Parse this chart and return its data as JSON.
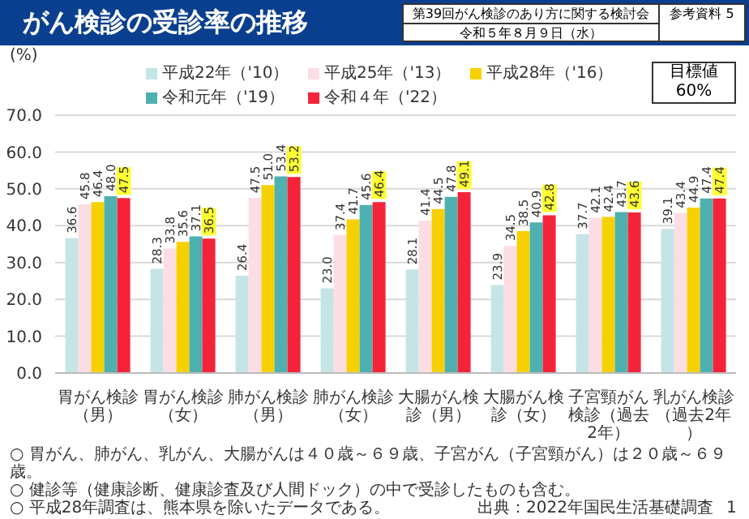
{
  "chart_data": {
    "type": "bar",
    "title": "がん検診の受診率の推移",
    "ylabel": "(%)",
    "categories": [
      "胃がん検診（男）",
      "胃がん検診（女）",
      "肺がん検診（男）",
      "肺がん検診（女）",
      "大腸がん検診（男）",
      "大腸がん検診（女）",
      "子宮頸がん検診（過去2年）",
      "乳がん検診（過去2年）"
    ],
    "series": [
      {
        "name": "平成22年（'10）",
        "color": "#c5e4e6",
        "values": [
          36.6,
          28.3,
          26.4,
          23.0,
          28.1,
          23.9,
          37.7,
          39.1
        ],
        "value_labels": [
          "36.6",
          "28.3",
          "26.4",
          "23.0",
          "28.1",
          "23.9",
          "37.7",
          "39.1"
        ]
      },
      {
        "name": "平成25年（'13）",
        "color": "#fcdde3",
        "values": [
          45.8,
          33.8,
          47.5,
          37.4,
          41.4,
          34.5,
          42.1,
          43.4
        ],
        "value_labels": [
          "45.8",
          "33.8",
          "47.5",
          "37.4",
          "41.4",
          "34.5",
          "42.1",
          "43.4"
        ]
      },
      {
        "name": "平成28年（'16）",
        "color": "#f7d000",
        "values": [
          46.4,
          35.6,
          51.0,
          41.7,
          44.5,
          38.5,
          42.4,
          44.9
        ],
        "value_labels": [
          "46.4",
          "35.6",
          "51.0",
          "41.7",
          "44.5",
          "38.5",
          "42.4",
          "44.9"
        ]
      },
      {
        "name": "令和元年（'19）",
        "color": "#4fb0b0",
        "values": [
          48.0,
          37.1,
          53.4,
          45.6,
          47.8,
          40.9,
          43.7,
          47.4
        ],
        "value_labels": [
          "48.0",
          "37.1",
          "53.4",
          "45.6",
          "47.8",
          "40.9",
          "43.7",
          "47.4"
        ]
      },
      {
        "name": "令和４年（'22）",
        "color": "#f5233a",
        "values": [
          47.5,
          36.5,
          53.2,
          46.4,
          49.1,
          42.8,
          43.6,
          47.4
        ],
        "value_labels": [
          "47.5",
          "36.5",
          "53.2",
          "46.4",
          "49.1",
          "42.8",
          "43.6",
          "47.4"
        ]
      }
    ],
    "ylim": [
      0,
      70
    ],
    "yticks": [
      {
        "value": 0,
        "label": "0.0"
      },
      {
        "value": 10,
        "label": "10.0"
      },
      {
        "value": 20,
        "label": "20.0"
      },
      {
        "value": 30,
        "label": "30.0"
      },
      {
        "value": 40,
        "label": "40.0"
      },
      {
        "value": 50,
        "label": "50.0"
      },
      {
        "value": 60,
        "label": "60.0"
      },
      {
        "value": 70,
        "label": "70.0"
      }
    ],
    "grid": "y",
    "legend": "top",
    "annotations": [
      "第39回がん検診のあり方に関する検討会",
      "令和５年８月９日（水）",
      "参考資料 5",
      "目標値 60%",
      "○ 胃がん、肺がん、乳がん、大腸がんは４０歳～６９歳、子宮がん（子宮頸がん）は２０歳～６９歳。",
      "○ 健診等（健康診断、健康診査及び人間ドック）の中で受診したものも含む。",
      "○ 平成28年調査は、熊本県を除いたデータである。",
      "出典：2022年国民生活基礎調査",
      "1"
    ]
  }
}
